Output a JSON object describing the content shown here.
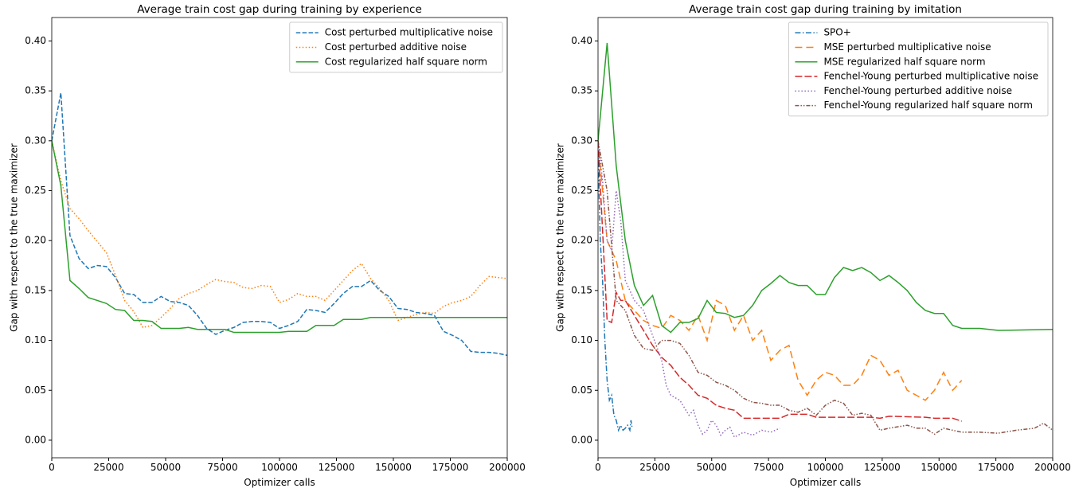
{
  "chart_data": [
    {
      "type": "line",
      "title": "Average train cost gap during training by experience",
      "xlabel": "Optimizer calls",
      "ylabel": "Gap with respect to the true maximizer",
      "xlim": [
        0,
        200000
      ],
      "ylim": [
        -0.0176,
        0.4235
      ],
      "xticks": [
        0,
        25000,
        50000,
        75000,
        100000,
        125000,
        150000,
        175000,
        200000
      ],
      "yticks": [
        {
          "value": 0,
          "label": "0.00"
        },
        {
          "value": 0.05,
          "label": "0.05"
        },
        {
          "value": 0.1,
          "label": "0.10"
        },
        {
          "value": 0.15,
          "label": "0.15"
        },
        {
          "value": 0.2,
          "label": "0.20"
        },
        {
          "value": 0.25,
          "label": "0.25"
        },
        {
          "value": 0.3,
          "label": "0.30"
        },
        {
          "value": 0.35,
          "label": "0.35"
        },
        {
          "value": 0.4,
          "label": "0.40"
        }
      ],
      "legend": "upper right",
      "series": [
        {
          "name": "Cost perturbed multiplicative noise",
          "color": "#1f77b4",
          "linestyle": "dashed",
          "x": [
            0,
            4000,
            8000,
            12000,
            16000,
            20000,
            24000,
            28000,
            32000,
            36000,
            40000,
            44000,
            48000,
            52000,
            56000,
            60000,
            64000,
            68000,
            72000,
            76000,
            80000,
            84000,
            88000,
            92000,
            96000,
            100000,
            104000,
            108000,
            112000,
            116000,
            120000,
            124000,
            128000,
            132000,
            136000,
            140000,
            144000,
            148000,
            152000,
            156000,
            160000,
            164000,
            168000,
            172000,
            176000,
            180000,
            184000,
            188000,
            192000,
            196000,
            200000
          ],
          "values": [
            0.3,
            0.348,
            0.205,
            0.182,
            0.172,
            0.175,
            0.174,
            0.163,
            0.147,
            0.146,
            0.138,
            0.138,
            0.144,
            0.139,
            0.138,
            0.135,
            0.125,
            0.112,
            0.106,
            0.11,
            0.113,
            0.118,
            0.119,
            0.119,
            0.118,
            0.112,
            0.115,
            0.119,
            0.131,
            0.13,
            0.128,
            0.137,
            0.147,
            0.154,
            0.154,
            0.16,
            0.15,
            0.144,
            0.132,
            0.131,
            0.128,
            0.127,
            0.125,
            0.109,
            0.105,
            0.1,
            0.089,
            0.088,
            0.088,
            0.087,
            0.085
          ]
        },
        {
          "name": "Cost perturbed additive noise",
          "color": "#ff7f0e",
          "linestyle": "dotted",
          "x": [
            0,
            4000,
            8000,
            12000,
            16000,
            20000,
            24000,
            28000,
            32000,
            36000,
            40000,
            44000,
            48000,
            52000,
            56000,
            60000,
            64000,
            68000,
            72000,
            76000,
            80000,
            84000,
            88000,
            92000,
            96000,
            100000,
            104000,
            108000,
            112000,
            116000,
            120000,
            124000,
            128000,
            132000,
            136000,
            140000,
            144000,
            148000,
            152000,
            156000,
            160000,
            164000,
            168000,
            172000,
            176000,
            180000,
            184000,
            188000,
            192000,
            196000,
            200000
          ],
          "values": [
            0.3,
            0.26,
            0.232,
            0.222,
            0.21,
            0.199,
            0.188,
            0.165,
            0.14,
            0.129,
            0.113,
            0.115,
            0.123,
            0.132,
            0.142,
            0.147,
            0.15,
            0.156,
            0.161,
            0.159,
            0.158,
            0.153,
            0.152,
            0.155,
            0.154,
            0.138,
            0.141,
            0.147,
            0.144,
            0.144,
            0.14,
            0.15,
            0.16,
            0.17,
            0.177,
            0.162,
            0.152,
            0.14,
            0.12,
            0.123,
            0.126,
            0.128,
            0.127,
            0.134,
            0.138,
            0.14,
            0.144,
            0.155,
            0.164,
            0.163,
            0.162
          ]
        },
        {
          "name": "Cost regularized half square norm",
          "color": "#2ca02c",
          "linestyle": "solid",
          "x": [
            0,
            4000,
            8000,
            12000,
            16000,
            20000,
            24000,
            28000,
            32000,
            36000,
            40000,
            44000,
            48000,
            52000,
            56000,
            60000,
            64000,
            68000,
            72000,
            76000,
            80000,
            100000,
            104000,
            112000,
            116000,
            124000,
            128000,
            136000,
            140000,
            200000
          ],
          "values": [
            0.3,
            0.255,
            0.16,
            0.152,
            0.143,
            0.14,
            0.137,
            0.131,
            0.13,
            0.12,
            0.12,
            0.119,
            0.112,
            0.112,
            0.112,
            0.113,
            0.111,
            0.111,
            0.111,
            0.111,
            0.108,
            0.108,
            0.109,
            0.109,
            0.115,
            0.115,
            0.121,
            0.121,
            0.123,
            0.123
          ]
        }
      ]
    },
    {
      "type": "line",
      "title": "Average train cost gap during training by imitation",
      "xlabel": "Optimizer calls",
      "ylabel": "Gap with respect to the true maximizer",
      "xlim": [
        0,
        200000
      ],
      "ylim": [
        -0.0176,
        0.4235
      ],
      "xticks": [
        0,
        25000,
        50000,
        75000,
        100000,
        125000,
        150000,
        175000,
        200000
      ],
      "yticks": [
        {
          "value": 0,
          "label": "0.00"
        },
        {
          "value": 0.05,
          "label": "0.05"
        },
        {
          "value": 0.1,
          "label": "0.10"
        },
        {
          "value": 0.15,
          "label": "0.15"
        },
        {
          "value": 0.2,
          "label": "0.20"
        },
        {
          "value": 0.25,
          "label": "0.25"
        },
        {
          "value": 0.3,
          "label": "0.30"
        },
        {
          "value": 0.35,
          "label": "0.35"
        },
        {
          "value": 0.4,
          "label": "0.40"
        }
      ],
      "legend": "upper right",
      "series": [
        {
          "name": "SPO+",
          "color": "#1f77b4",
          "linestyle": "dashdot",
          "x": [
            0,
            1000,
            2000,
            3000,
            4000,
            5000,
            6000,
            7000,
            8000,
            9000,
            10000,
            11000,
            12000,
            13000,
            14000,
            14500,
            15000
          ],
          "values": [
            0.29,
            0.2,
            0.16,
            0.1,
            0.06,
            0.04,
            0.045,
            0.025,
            0.02,
            0.01,
            0.015,
            0.01,
            0.012,
            0.015,
            0.01,
            0.02,
            0.012
          ]
        },
        {
          "name": "MSE perturbed multiplicative noise",
          "color": "#ff7f0e",
          "linestyle": "loosely dashed",
          "x": [
            0,
            4000,
            8000,
            12000,
            16000,
            20000,
            24000,
            28000,
            32000,
            36000,
            40000,
            44000,
            48000,
            52000,
            56000,
            60000,
            64000,
            68000,
            72000,
            76000,
            80000,
            84000,
            88000,
            92000,
            96000,
            100000,
            104000,
            108000,
            112000,
            116000,
            120000,
            124000,
            128000,
            132000,
            136000,
            140000,
            144000,
            148000,
            152000,
            156000,
            160000
          ],
          "values": [
            0.3,
            0.2,
            0.18,
            0.14,
            0.13,
            0.12,
            0.115,
            0.112,
            0.125,
            0.12,
            0.11,
            0.125,
            0.1,
            0.14,
            0.135,
            0.11,
            0.125,
            0.1,
            0.11,
            0.08,
            0.09,
            0.095,
            0.06,
            0.045,
            0.06,
            0.068,
            0.065,
            0.055,
            0.055,
            0.065,
            0.085,
            0.08,
            0.065,
            0.07,
            0.05,
            0.045,
            0.04,
            0.05,
            0.068,
            0.05,
            0.06
          ]
        },
        {
          "name": "MSE regularized half square norm",
          "color": "#2ca02c",
          "linestyle": "solid",
          "x": [
            0,
            4000,
            8000,
            12000,
            16000,
            20000,
            24000,
            28000,
            32000,
            36000,
            40000,
            44000,
            48000,
            52000,
            56000,
            60000,
            64000,
            68000,
            72000,
            76000,
            80000,
            84000,
            88000,
            92000,
            96000,
            100000,
            104000,
            108000,
            112000,
            116000,
            120000,
            124000,
            128000,
            132000,
            136000,
            140000,
            144000,
            148000,
            152000,
            156000,
            160000,
            168000,
            176000,
            200000
          ],
          "values": [
            0.3,
            0.398,
            0.275,
            0.2,
            0.155,
            0.135,
            0.145,
            0.115,
            0.108,
            0.118,
            0.118,
            0.122,
            0.14,
            0.128,
            0.127,
            0.123,
            0.125,
            0.135,
            0.15,
            0.157,
            0.165,
            0.158,
            0.155,
            0.155,
            0.146,
            0.146,
            0.163,
            0.173,
            0.17,
            0.173,
            0.168,
            0.16,
            0.165,
            0.158,
            0.15,
            0.138,
            0.13,
            0.127,
            0.127,
            0.115,
            0.112,
            0.112,
            0.11,
            0.111
          ]
        },
        {
          "name": "Fenchel-Young perturbed multiplicative noise",
          "color": "#d62728",
          "linestyle": "long dashed",
          "x": [
            0,
            2000,
            4000,
            6000,
            8000,
            10000,
            12000,
            16000,
            20000,
            24000,
            28000,
            32000,
            36000,
            40000,
            44000,
            48000,
            52000,
            56000,
            60000,
            64000,
            80000,
            84000,
            92000,
            96000,
            120000,
            124000,
            128000,
            144000,
            148000,
            156000,
            160000
          ],
          "values": [
            0.3,
            0.21,
            0.12,
            0.118,
            0.148,
            0.14,
            0.14,
            0.125,
            0.11,
            0.095,
            0.083,
            0.075,
            0.063,
            0.055,
            0.045,
            0.042,
            0.035,
            0.032,
            0.03,
            0.022,
            0.022,
            0.026,
            0.026,
            0.023,
            0.023,
            0.022,
            0.024,
            0.023,
            0.022,
            0.022,
            0.019
          ]
        },
        {
          "name": "Fenchel-Young perturbed additive noise",
          "color": "#9467bd",
          "linestyle": "dotted",
          "x": [
            0,
            2000,
            4000,
            6000,
            8000,
            10000,
            12000,
            16000,
            20000,
            24000,
            28000,
            30000,
            32000,
            36000,
            40000,
            42000,
            44000,
            46000,
            48000,
            50000,
            52000,
            54000,
            56000,
            58000,
            60000,
            64000,
            68000,
            72000,
            76000,
            80000
          ],
          "values": [
            0.3,
            0.26,
            0.2,
            0.19,
            0.25,
            0.22,
            0.16,
            0.14,
            0.13,
            0.105,
            0.08,
            0.055,
            0.045,
            0.04,
            0.025,
            0.03,
            0.015,
            0.006,
            0.01,
            0.02,
            0.015,
            0.005,
            0.01,
            0.013,
            0.003,
            0.008,
            0.005,
            0.01,
            0.008,
            0.012
          ]
        },
        {
          "name": "Fenchel-Young regularized half square norm",
          "color": "#8c564b",
          "linestyle": "dashdotdotted",
          "x": [
            0,
            4000,
            8000,
            12000,
            16000,
            20000,
            24000,
            28000,
            32000,
            36000,
            40000,
            44000,
            48000,
            52000,
            56000,
            60000,
            64000,
            68000,
            72000,
            76000,
            80000,
            84000,
            88000,
            92000,
            96000,
            100000,
            104000,
            108000,
            112000,
            116000,
            120000,
            124000,
            128000,
            136000,
            140000,
            144000,
            148000,
            152000,
            156000,
            160000,
            168000,
            176000,
            184000,
            192000,
            196000,
            200000
          ],
          "values": [
            0.3,
            0.25,
            0.14,
            0.13,
            0.105,
            0.092,
            0.09,
            0.1,
            0.1,
            0.097,
            0.085,
            0.068,
            0.065,
            0.058,
            0.055,
            0.05,
            0.042,
            0.038,
            0.037,
            0.035,
            0.035,
            0.03,
            0.028,
            0.032,
            0.025,
            0.035,
            0.04,
            0.037,
            0.025,
            0.027,
            0.025,
            0.01,
            0.012,
            0.015,
            0.012,
            0.012,
            0.006,
            0.012,
            0.01,
            0.008,
            0.008,
            0.007,
            0.01,
            0.012,
            0.017,
            0.01
          ]
        }
      ]
    }
  ]
}
